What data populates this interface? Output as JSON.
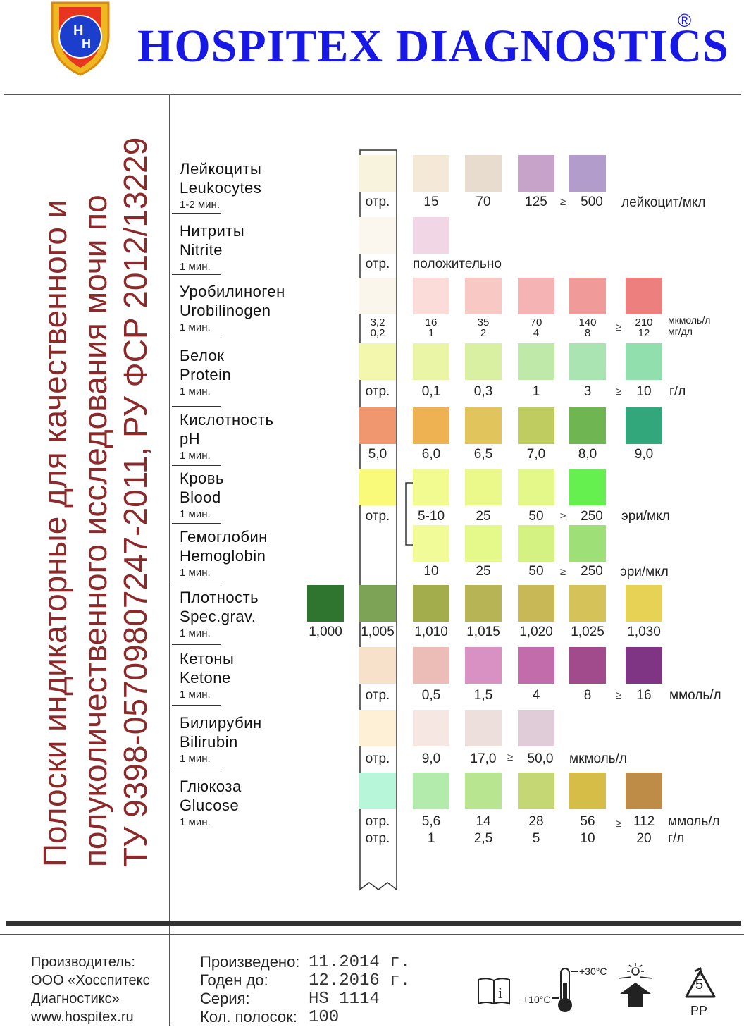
{
  "brand": {
    "name": "HOSPITEX DIAGNOSTICS",
    "registered": "®",
    "logo_letters": "H H"
  },
  "vertical_title": [
    "Полоски индикаторные для качественного  и",
    "полуколичественного исследования мочи по",
    "ТУ 9398-05709807247-2011, РУ ФСР 2012/13229"
  ],
  "rows": [
    {
      "ru": "Лейкоциты",
      "en": "Leukocytes",
      "time": "1-2 мин."
    },
    {
      "ru": "Нитриты",
      "en": "Nitrite",
      "time": "1 мин."
    },
    {
      "ru": "Уробилиноген",
      "en": "Urobilinogen",
      "time": "1 мин."
    },
    {
      "ru": "Белок",
      "en": "Protein",
      "time": "1 мин."
    },
    {
      "ru": "Кислотность",
      "en": "pH",
      "time": "1 мин."
    },
    {
      "ru": "Кровь",
      "en": "Blood",
      "time": "1 мин."
    },
    {
      "ru": "Гемоглобин",
      "en": "Hemoglobin",
      "time": "1 мин."
    },
    {
      "ru": "Плотность",
      "en": "Spec.grav.",
      "time": "1 мин."
    },
    {
      "ru": "Кетоны",
      "en": "Ketone",
      "time": "1 мин."
    },
    {
      "ru": "Билирубин",
      "en": "Bilirubin",
      "time": "1 мин."
    },
    {
      "ru": "Глюкоза",
      "en": "Glucose",
      "time": "1 мин."
    }
  ],
  "scales": {
    "leukocytes": {
      "labels": [
        "отр.",
        "15",
        "70",
        "125",
        "500"
      ],
      "ge": "≥",
      "unit": "лейкоцит/мкл",
      "colors": [
        "#f8f3dc",
        "#f4e9d6",
        "#e8dccf",
        "#c8a3c9",
        "#b29ccb"
      ]
    },
    "nitrite": {
      "labels": [
        "отр.",
        "положительно"
      ],
      "colors": [
        "#fbf7ee",
        "#f1d6e6"
      ]
    },
    "urobilinogen": {
      "top": [
        "3,2",
        "16",
        "35",
        "70",
        "140",
        "210"
      ],
      "bottom": [
        "0,2",
        "1",
        "2",
        "4",
        "8",
        "12"
      ],
      "ge": "≥",
      "unit_top": "мкмоль/л",
      "unit_bottom": "мг/дл",
      "colors": [
        "#fbf6ec",
        "#fbdcd8",
        "#f8c9c4",
        "#f5b3b3",
        "#f09a9a",
        "#ee7f7f"
      ]
    },
    "protein": {
      "labels": [
        "отр.",
        "0,1",
        "0,3",
        "1",
        "3",
        "10"
      ],
      "ge": "≥",
      "unit": "г/л",
      "colors": [
        "#f3f7ae",
        "#eaf6a6",
        "#d9f0a3",
        "#bfe9a9",
        "#a9e4b2",
        "#90dfac"
      ]
    },
    "ph": {
      "labels": [
        "5,0",
        "6,0",
        "6,5",
        "7,0",
        "8,0",
        "9,0"
      ],
      "colors": [
        "#f19770",
        "#eeb253",
        "#e1c45b",
        "#bfcc60",
        "#6fb552",
        "#33a77c"
      ]
    },
    "blood": {
      "labels": [
        "отр.",
        "5-10",
        "25",
        "50",
        "250"
      ],
      "ge": "≥",
      "unit": "эри/мкл",
      "colors": [
        "#fafa7a",
        "#f2fb90",
        "#eaf98a",
        "#e4f88a",
        "#66f050"
      ]
    },
    "hemoglobin": {
      "labels": [
        "10",
        "25",
        "50",
        "250"
      ],
      "ge": "≥",
      "unit": "эри/мкл",
      "colors": [
        "#f1fb98",
        "#e4f98a",
        "#d4f282",
        "#9fdf78"
      ]
    },
    "specgrav": {
      "labels": [
        "1,000",
        "1,005",
        "1,010",
        "1,015",
        "1,020",
        "1,025",
        "1,030"
      ],
      "colors": [
        "#2f7530",
        "#7da357",
        "#a4ad4c",
        "#b6b454",
        "#c8b856",
        "#d5c259",
        "#e7d256"
      ]
    },
    "ketone": {
      "labels": [
        "отр.",
        "0,5",
        "1,5",
        "4",
        "8",
        "16"
      ],
      "ge": "≥",
      "unit": "ммоль/л",
      "colors": [
        "#f8e1cb",
        "#ecbcb6",
        "#d991c4",
        "#c26cab",
        "#a14a8c",
        "#7f3583"
      ]
    },
    "bilirubin": {
      "labels": [
        "отр.",
        "9,0",
        "17,0",
        "50,0"
      ],
      "ge": "≥",
      "unit": "мкмоль/л",
      "colors": [
        "#fdf0d6",
        "#f7e7e2",
        "#ecdfdc",
        "#e0ccd9"
      ]
    },
    "glucose": {
      "top": [
        "отр.",
        "5,6",
        "14",
        "28",
        "56",
        "112"
      ],
      "bottom": [
        "отр.",
        "1",
        "2,5",
        "5",
        "10",
        "20"
      ],
      "ge": "≥",
      "unit_top": "ммоль/л",
      "unit_bottom": "г/л",
      "colors": [
        "#b7f6d9",
        "#b2ebab",
        "#b8e590",
        "#c5d775",
        "#d6bd47",
        "#bf8c48"
      ]
    }
  },
  "footer": {
    "manufacturer": [
      "Производитель:",
      "ООО «Хосспитекс",
      "Диагностикс»",
      "www.hospitex.ru"
    ],
    "fields": [
      {
        "label": "Произведено:",
        "value": "11.2014 г."
      },
      {
        "label": "Годен до:",
        "value": "12.2016 г."
      },
      {
        "label": "Серия:",
        "value": "HS 1114"
      },
      {
        "label": "Кол. полосок:",
        "value": "100"
      }
    ],
    "temp_high": "+30°C",
    "temp_low": "+10°C",
    "recycle_number": "5",
    "recycle_code": "PP",
    "icons": [
      "instructions-book-icon",
      "thermometer-icon",
      "keep-from-sunlight-icon",
      "recycle-icon"
    ]
  }
}
